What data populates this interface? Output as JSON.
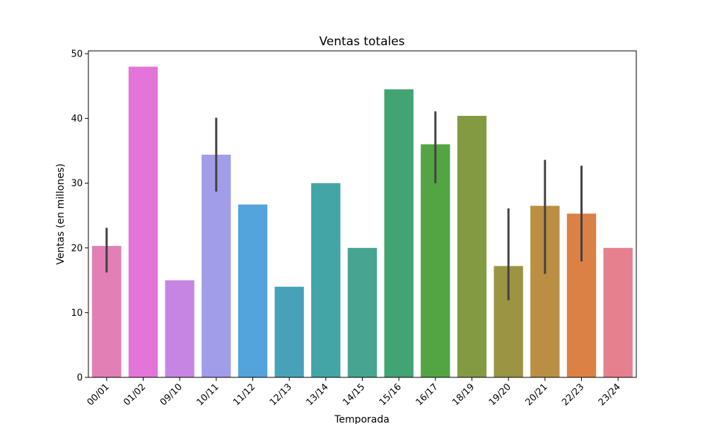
{
  "chart_data": {
    "type": "bar",
    "title": "Ventas totales",
    "xlabel": "Temporada",
    "ylabel": "Ventas (en millones)",
    "ylim": [
      0,
      50
    ],
    "yticks": [
      0,
      10,
      20,
      30,
      40,
      50
    ],
    "grid": false,
    "legend": "none",
    "categories": [
      "00/01",
      "01/02",
      "09/10",
      "10/11",
      "11/12",
      "12/13",
      "13/14",
      "14/15",
      "15/16",
      "16/17",
      "18/19",
      "19/20",
      "20/21",
      "22/23",
      "23/24"
    ],
    "values": [
      20.3,
      48.0,
      15.0,
      34.4,
      26.7,
      14.0,
      30.0,
      20.0,
      44.5,
      36.0,
      40.4,
      17.2,
      26.5,
      25.3,
      20.0
    ],
    "error_low": [
      16.2,
      null,
      null,
      28.7,
      null,
      null,
      null,
      null,
      null,
      30.0,
      null,
      11.9,
      16.0,
      17.9,
      null
    ],
    "error_high": [
      23.1,
      null,
      null,
      40.1,
      null,
      null,
      null,
      null,
      null,
      41.1,
      null,
      26.1,
      33.6,
      32.7,
      null
    ],
    "colors": [
      "#e27fb5",
      "#e375d9",
      "#c785e3",
      "#a19de8",
      "#53a3dd",
      "#47a2b9",
      "#43a5a5",
      "#46a490",
      "#42a373",
      "#53a442",
      "#849a42",
      "#9a9443",
      "#ba8f43",
      "#db8146",
      "#e67f8e"
    ]
  }
}
